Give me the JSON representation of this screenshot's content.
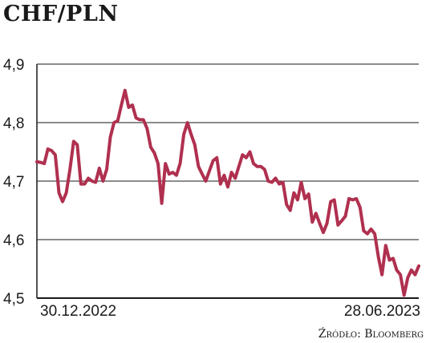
{
  "chart_data": {
    "type": "line",
    "title": "CHF/PLN",
    "source": "Źródło: Bloomberg",
    "xlabel": "",
    "ylabel": "",
    "x_tick_labels": [
      "30.12.2022",
      "28.06.2023"
    ],
    "y_ticks": [
      4.5,
      4.6,
      4.7,
      4.8,
      4.9
    ],
    "y_tick_labels": [
      "4,5",
      "4,6",
      "4,7",
      "4,8",
      "4,9"
    ],
    "ylim": [
      4.5,
      4.9
    ],
    "grid": true,
    "colors": {
      "line": "#b0304f",
      "grid": "#1a1a1a",
      "axis": "#1a1a1a"
    },
    "series": [
      {
        "values": [
          4.733,
          4.732,
          4.73,
          4.755,
          4.752,
          4.745,
          4.68,
          4.665,
          4.68,
          4.72,
          4.768,
          4.762,
          4.695,
          4.695,
          4.705,
          4.7,
          4.698,
          4.722,
          4.7,
          4.72,
          4.775,
          4.8,
          4.803,
          4.83,
          4.855,
          4.826,
          4.83,
          4.808,
          4.805,
          4.805,
          4.79,
          4.758,
          4.748,
          4.73,
          4.662,
          4.73,
          4.712,
          4.715,
          4.71,
          4.73,
          4.78,
          4.8,
          4.78,
          4.762,
          4.725,
          4.712,
          4.7,
          4.718,
          4.735,
          4.74,
          4.695,
          4.71,
          4.69,
          4.715,
          4.705,
          4.725,
          4.745,
          4.74,
          4.75,
          4.73,
          4.725,
          4.725,
          4.72,
          4.7,
          4.698,
          4.705,
          4.695,
          4.698,
          4.66,
          4.65,
          4.68,
          4.668,
          4.698,
          4.67,
          4.678,
          4.63,
          4.645,
          4.628,
          4.612,
          4.628,
          4.665,
          4.668,
          4.625,
          4.632,
          4.64,
          4.67,
          4.668,
          4.67,
          4.655,
          4.615,
          4.61,
          4.618,
          4.61,
          4.57,
          4.54,
          4.59,
          4.565,
          4.568,
          4.548,
          4.54,
          4.505,
          4.535,
          4.548,
          4.54,
          4.555
        ]
      }
    ]
  }
}
